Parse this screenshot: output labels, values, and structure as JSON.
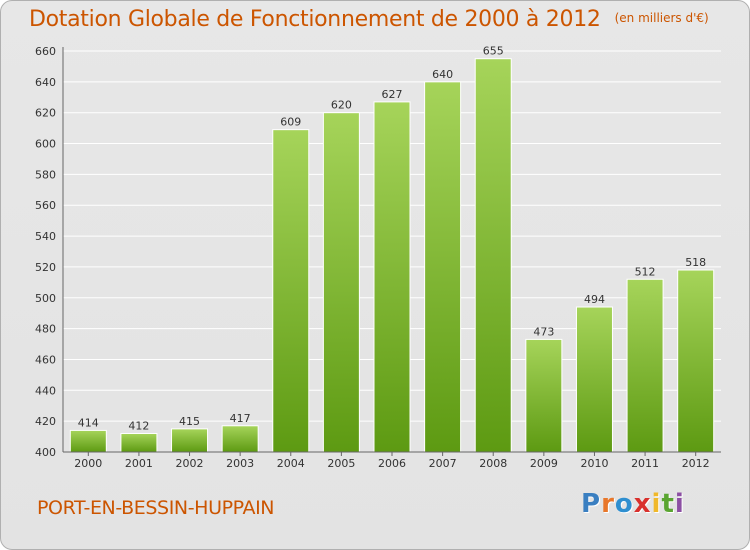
{
  "title": "Dotation Globale de Fonctionnement de 2000 à 2012",
  "unit_note": "(en milliers d'€)",
  "place_name": "PORT-EN-BESSIN-HUPPAIN",
  "logo": {
    "text": "Proxiti",
    "colors": [
      "#3a7fc1",
      "#e8772a",
      "#2f8fd0",
      "#d9302c",
      "#f0b82a",
      "#5aa531",
      "#8c4fa3"
    ]
  },
  "colors": {
    "bar_light": "#a6d45a",
    "bar_dark": "#5d9a12",
    "title": "#cc5500",
    "grid": "#ffffff"
  },
  "chart_data": {
    "type": "bar",
    "title": "Dotation Globale de Fonctionnement de 2000 à 2012",
    "xlabel": "",
    "ylabel": "",
    "categories": [
      "2000",
      "2001",
      "2002",
      "2003",
      "2004",
      "2005",
      "2006",
      "2007",
      "2008",
      "2009",
      "2010",
      "2011",
      "2012"
    ],
    "values": [
      414,
      412,
      415,
      417,
      609,
      620,
      627,
      640,
      655,
      473,
      494,
      512,
      518
    ],
    "ylim": [
      400,
      660
    ],
    "yticks": [
      400,
      420,
      440,
      460,
      480,
      500,
      520,
      540,
      560,
      580,
      600,
      620,
      640,
      660
    ],
    "grid": true,
    "data_labels": true
  }
}
